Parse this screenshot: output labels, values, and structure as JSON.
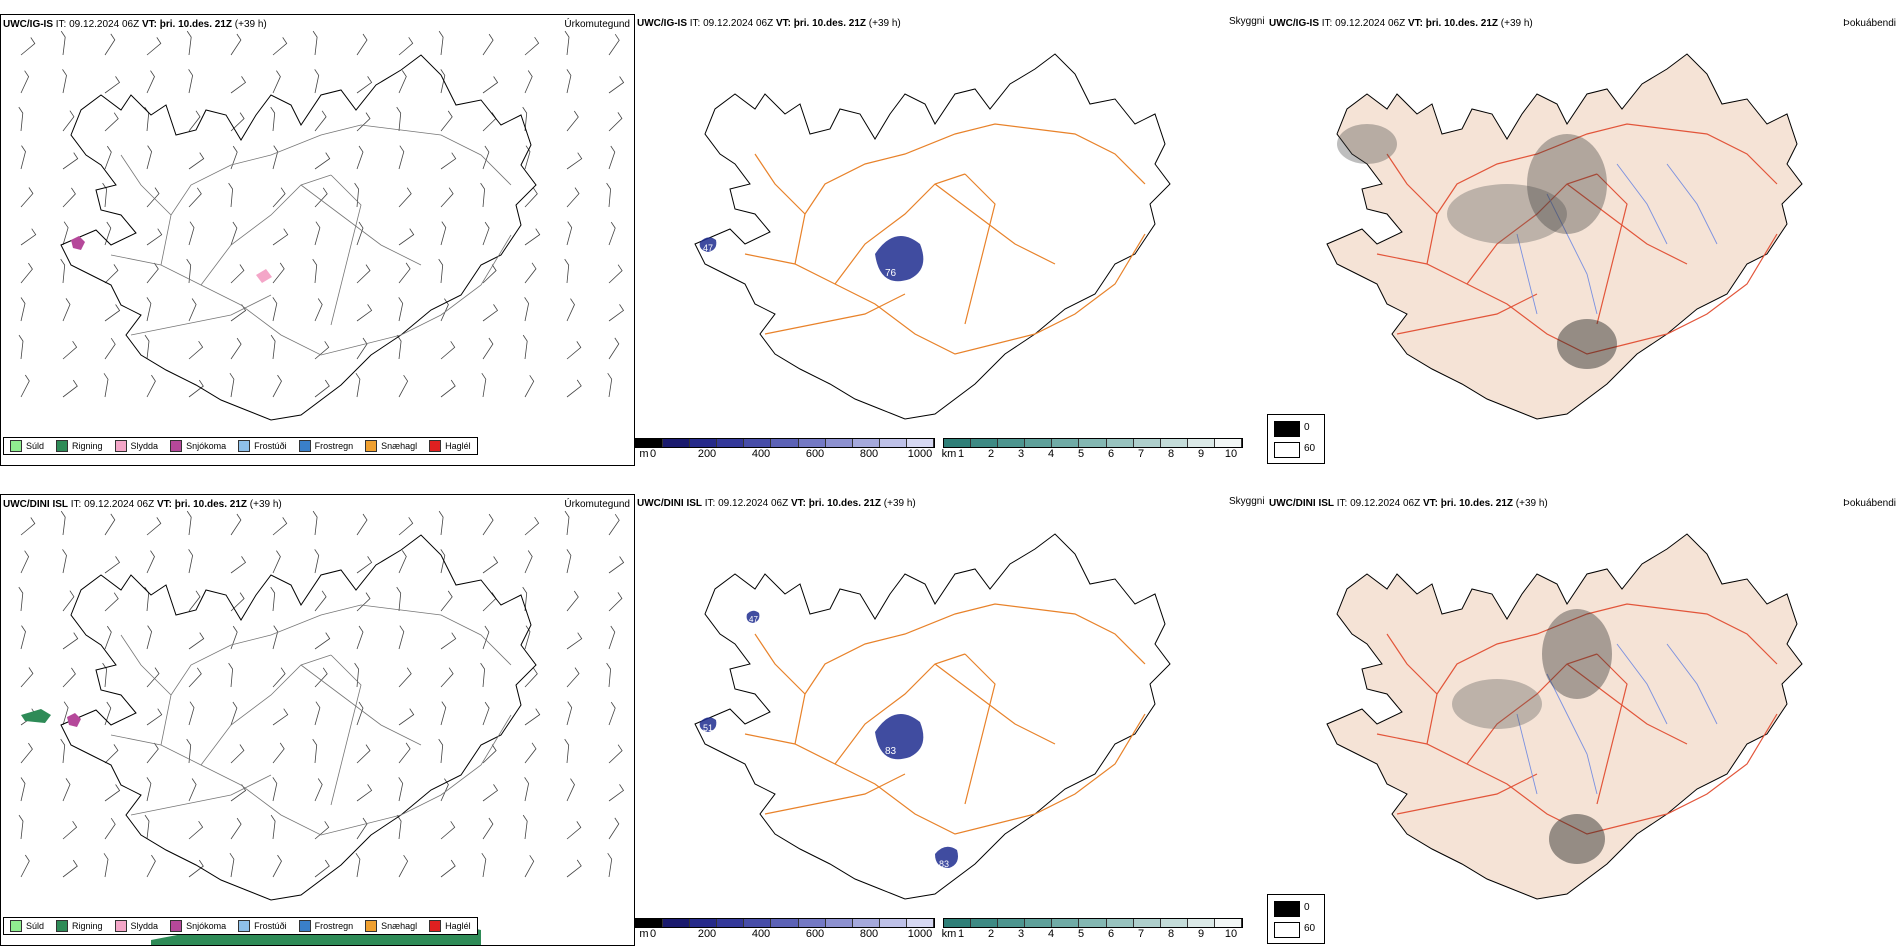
{
  "rows": [
    {
      "model": "UWC/IG-IS",
      "it_label": "IT:",
      "it_value": "09.12.2024 06Z",
      "vt_label": "VT:",
      "vt_value": "þri. 10.des. 21Z",
      "lead": "(+39 h)",
      "panel_titles": {
        "precip": "Úrkomutegund",
        "cloud": "Skyggni",
        "fog": "Þokuábendi"
      },
      "labels": [
        "76",
        "47"
      ]
    },
    {
      "model": "UWC/DINI ISL",
      "it_label": "IT:",
      "it_value": "09.12.2024 06Z",
      "vt_label": "VT:",
      "vt_value": "þri. 10.des. 21Z",
      "lead": "(+39 h)",
      "panel_titles": {
        "precip": "Úrkomutegund",
        "cloud": "Skyggni",
        "fog": "Þokuábendi"
      },
      "labels": [
        "83",
        "51",
        "83",
        "47"
      ]
    }
  ],
  "precip_legend": [
    {
      "label": "Súld",
      "color": "#90ee90"
    },
    {
      "label": "Rigning",
      "color": "#2e8b57"
    },
    {
      "label": "Slydda",
      "color": "#f4a6c8"
    },
    {
      "label": "Snjókoma",
      "color": "#b5489a"
    },
    {
      "label": "Frostúði",
      "color": "#8ec0ea"
    },
    {
      "label": "Frostregn",
      "color": "#3a7fc8"
    },
    {
      "label": "Snæhagl",
      "color": "#f0a030"
    },
    {
      "label": "Haglél",
      "color": "#e02020"
    }
  ],
  "height_bar": {
    "unit": "m",
    "ticks": [
      "0",
      "200",
      "400",
      "600",
      "800",
      "1000"
    ]
  },
  "vis_bar": {
    "unit": "km",
    "ticks": [
      "1",
      "2",
      "3",
      "4",
      "5",
      "6",
      "7",
      "8",
      "9",
      "10"
    ]
  },
  "fog_legend": {
    "low": "0",
    "high": "60"
  },
  "colors": {
    "land_fill": "#f5e3d6",
    "road": "#e8822a",
    "road_red": "#e2553a",
    "river": "#7a90e0",
    "blue_mark": "#1f2d8f",
    "teal_mark": "#4a9a94",
    "rain_green": "#2e8b57"
  }
}
